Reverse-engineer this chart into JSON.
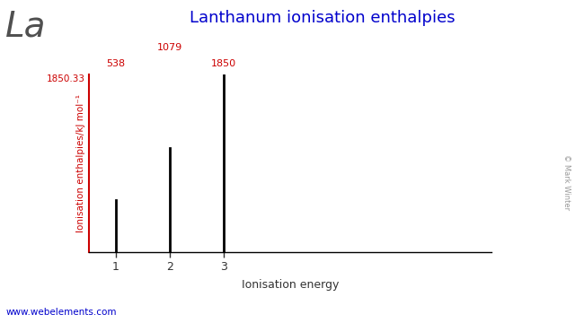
{
  "title": "Lanthanum ionisation enthalpies",
  "element_symbol": "La",
  "xlabel": "Ionisation energy",
  "ylabel": "Ionisation enthalpies/kJ mol⁻¹",
  "ionisation_numbers": [
    1,
    2,
    3
  ],
  "ionisation_values": [
    538,
    1079,
    1850
  ],
  "ymax_label": "1850.33",
  "ymax": 1850.33,
  "bar_color": "#000000",
  "axis_color": "#cc0000",
  "title_color": "#0000cc",
  "element_color": "#505050",
  "website_color": "#0000cc",
  "website": "www.webelements.com",
  "copyright": "© Mark Winter",
  "background_color": "#ffffff",
  "periodic_table_colors": {
    "blue": "#4472c4",
    "red": "#cc0000",
    "orange": "#e87e20",
    "green": "#339933"
  }
}
